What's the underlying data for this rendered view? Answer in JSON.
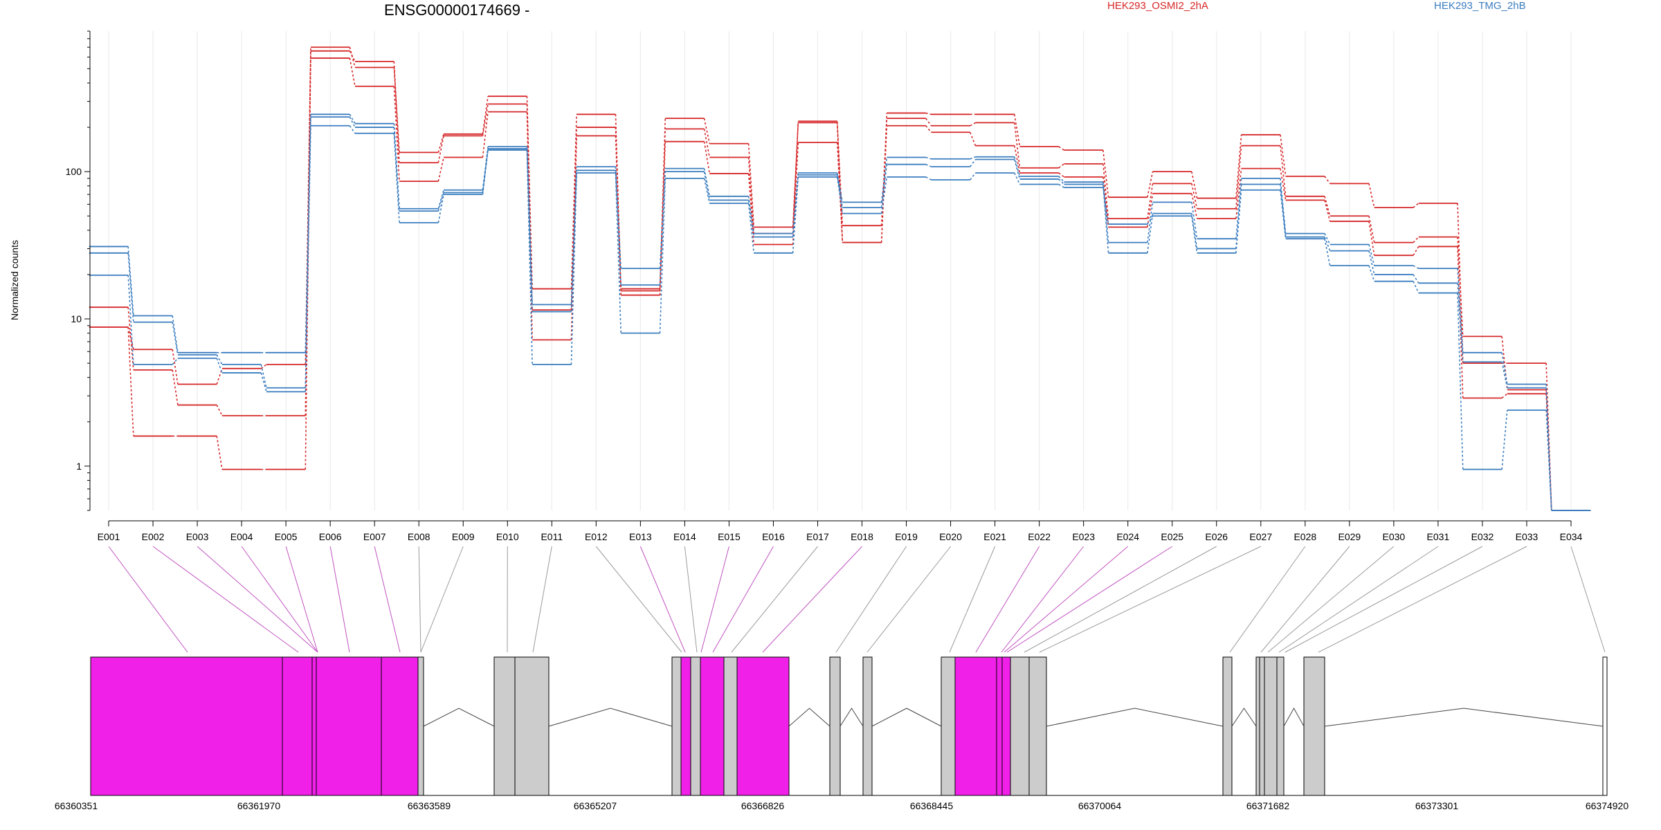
{
  "chart_data": {
    "type": "line",
    "title": "ENSG00000174669 -",
    "ylabel": "Normalized counts",
    "yscale": "log",
    "ylim": [
      0.5,
      900
    ],
    "yticks": [
      "1",
      "10",
      "100"
    ],
    "categories": [
      "E001",
      "E002",
      "E003",
      "E004",
      "E005",
      "E006",
      "E007",
      "E008",
      "E009",
      "E010",
      "E011",
      "E012",
      "E013",
      "E014",
      "E015",
      "E016",
      "E017",
      "E018",
      "E019",
      "E020",
      "E021",
      "E022",
      "E023",
      "E024",
      "E025",
      "E026",
      "E027",
      "E028",
      "E029",
      "E030",
      "E031",
      "E032",
      "E033",
      "E034"
    ],
    "grid": "vertical light grid at each exon",
    "legend_position": "top-right",
    "groups": [
      {
        "name": "HEK293_OSMI2_2hA",
        "color": "#d62728"
      },
      {
        "name": "HEK293_TMG_2hB",
        "color": "#3a7dbf"
      }
    ],
    "series": [
      {
        "group": "HEK293_OSMI2_2hA",
        "values": [
          12,
          4.5,
          2.6,
          2.2,
          2.2,
          700,
          510,
          135,
          180,
          325,
          16,
          245,
          14.5,
          230,
          155,
          42,
          215,
          33,
          250,
          245,
          245,
          148,
          140,
          67,
          100,
          66,
          178,
          93,
          83,
          57,
          61,
          5,
          5,
          0.5
        ]
      },
      {
        "group": "HEK293_OSMI2_2hA",
        "values": [
          8.8,
          6.2,
          3.6,
          4.6,
          4.9,
          660,
          560,
          115,
          175,
          288,
          11.5,
          200,
          15.5,
          195,
          125,
          38,
          220,
          43,
          230,
          205,
          215,
          106,
          113,
          48,
          83,
          56,
          150,
          68,
          50,
          33,
          36,
          7.6,
          3.3,
          0.5
        ]
      },
      {
        "group": "HEK293_OSMI2_2hA",
        "values": [
          8.8,
          1.6,
          1.6,
          0.95,
          0.95,
          590,
          380,
          86,
          125,
          255,
          7.2,
          175,
          16,
          160,
          97,
          32,
          158,
          33,
          205,
          185,
          150,
          98,
          92,
          42,
          71,
          48,
          105,
          64,
          46,
          27,
          31,
          2.9,
          3.1,
          0.5
        ]
      },
      {
        "group": "HEK293_TMG_2hB",
        "values": [
          31,
          10.5,
          5.9,
          5.9,
          5.9,
          245,
          212,
          56,
          75,
          148,
          12.5,
          108,
          22,
          105,
          68,
          38,
          98,
          62,
          125,
          122,
          126,
          93,
          85,
          33,
          62,
          35,
          90,
          38,
          32,
          23,
          22,
          5.9,
          3.6,
          0.5
        ]
      },
      {
        "group": "HEK293_TMG_2hB",
        "values": [
          28,
          9.5,
          5.7,
          4.9,
          3.4,
          235,
          200,
          54,
          72,
          143,
          11.2,
          102,
          17,
          100,
          64,
          36,
          95,
          57,
          112,
          108,
          121,
          89,
          82,
          28,
          52,
          30,
          82,
          36,
          29,
          20,
          17.5,
          5.1,
          3.4,
          0.5
        ]
      },
      {
        "group": "HEK293_TMG_2hB",
        "values": [
          19.8,
          4.9,
          5.4,
          4.3,
          3.2,
          205,
          182,
          45,
          70,
          140,
          4.9,
          98,
          8,
          90,
          61,
          28,
          92,
          52,
          92,
          88,
          98,
          82,
          78,
          44,
          50,
          28,
          75,
          35,
          23,
          18,
          15,
          0.95,
          2.4,
          0.5
        ]
      }
    ]
  },
  "gene_model": {
    "coordinates": [
      "66360351",
      "66361970",
      "66363589",
      "66365207",
      "66366826",
      "66368445",
      "66370064",
      "66371682",
      "66373301",
      "66374920"
    ],
    "highlight_color": "#f020e8",
    "exon_color": "#cccccc"
  }
}
